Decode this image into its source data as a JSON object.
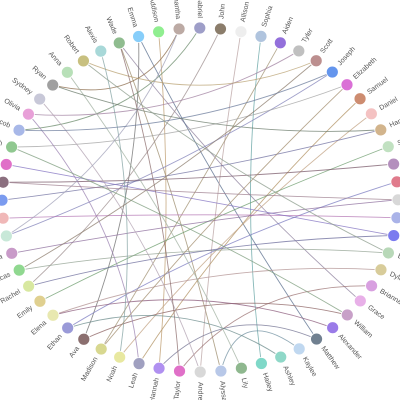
{
  "diagram": {
    "type": "radial-network",
    "nodes": [
      {
        "name": "Wade",
        "color": "#8fbc8f"
      },
      {
        "name": "Emma",
        "color": "#87cefa"
      },
      {
        "name": "Addison",
        "color": "#90ee90"
      },
      {
        "name": "Samantha",
        "color": "#bcaaa4"
      },
      {
        "name": "Gabriel",
        "color": "#9e9ec8"
      },
      {
        "name": "John",
        "color": "#8b7d6b"
      },
      {
        "name": "Allison",
        "color": "#eeeeee"
      },
      {
        "name": "Sophia",
        "color": "#b0c4de"
      },
      {
        "name": "Aiden",
        "color": "#9370db"
      },
      {
        "name": "Tyler",
        "color": "#c0c0c0"
      },
      {
        "name": "Scott",
        "color": "#bc8f8f"
      },
      {
        "name": "Joseph",
        "color": "#6495ed"
      },
      {
        "name": "Elizabeth",
        "color": "#da70d6"
      },
      {
        "name": "Samuel",
        "color": "#cd8c70"
      },
      {
        "name": "Daniel",
        "color": "#f4c2c2"
      },
      {
        "name": "Hannah",
        "color": "#d2b48c"
      },
      {
        "name": "Sofia",
        "color": "#c1e1c1"
      },
      {
        "name": "Zoey",
        "color": "#b48fbd"
      },
      {
        "name": "Olivia",
        "color": "#e07b8c"
      },
      {
        "name": "Brooklyn",
        "color": "#d8d8d8"
      },
      {
        "name": "Julia",
        "color": "#aab3e8"
      },
      {
        "name": "Joshua",
        "color": "#7b7bef"
      },
      {
        "name": "Ella",
        "color": "#b8d8b8"
      },
      {
        "name": "Dylan",
        "color": "#d8cc9a"
      },
      {
        "name": "Brianna",
        "color": "#d8a0e0"
      },
      {
        "name": "Grace",
        "color": "#e8b0e8"
      },
      {
        "name": "William",
        "color": "#c8a0c8"
      },
      {
        "name": "Alexander",
        "color": "#9a7be8"
      },
      {
        "name": "Matthew",
        "color": "#708090"
      },
      {
        "name": "Kaylee",
        "color": "#c0d8f0"
      },
      {
        "name": "Ashley",
        "color": "#8fd8c8"
      },
      {
        "name": "Hailey",
        "color": "#7fd8c8"
      },
      {
        "name": "Lily",
        "color": "#8fb88f"
      },
      {
        "name": "Alyssa",
        "color": "#b8c8e8"
      },
      {
        "name": "Andrew",
        "color": "#d8d8d8"
      },
      {
        "name": "Taylor",
        "color": "#e070c8"
      },
      {
        "name": "Hannah",
        "color": "#b090f0"
      },
      {
        "name": "Leah",
        "color": "#a0a0c0"
      },
      {
        "name": "Noah",
        "color": "#e8e8a0"
      },
      {
        "name": "Madison",
        "color": "#d8d890"
      },
      {
        "name": "Ava",
        "color": "#8b6f6f"
      },
      {
        "name": "Ethan",
        "color": "#9a9ad8"
      },
      {
        "name": "Elena",
        "color": "#e8e8b0"
      },
      {
        "name": "Emily",
        "color": "#e0d090"
      },
      {
        "name": "Rachel",
        "color": "#d8e8a0"
      },
      {
        "name": "Lucas",
        "color": "#90d890"
      },
      {
        "name": "Mia",
        "color": "#c89ac8"
      },
      {
        "name": "Liam",
        "color": "#c8e8d8"
      },
      {
        "name": "Mason",
        "color": "#f0b8b8"
      },
      {
        "name": "Isabella",
        "color": "#7b9bef"
      },
      {
        "name": "Chloe",
        "color": "#8b6f7f"
      },
      {
        "name": "Sophie",
        "color": "#e070c8"
      },
      {
        "name": "Sarah",
        "color": "#90c890"
      },
      {
        "name": "Jacob",
        "color": "#a8b8e8"
      },
      {
        "name": "Olivia",
        "color": "#e8a0d8"
      },
      {
        "name": "Sydney",
        "color": "#c8c8d8"
      },
      {
        "name": "Ryan",
        "color": "#a0a0a0"
      },
      {
        "name": "Anna",
        "color": "#b8e0b8"
      },
      {
        "name": "Robert",
        "color": "#c8c080"
      },
      {
        "name": "Alexis",
        "color": "#a8d8d8"
      }
    ],
    "edges": [
      {
        "source": 0,
        "target": 25,
        "color": "#8b7d9b"
      },
      {
        "source": 0,
        "target": 33,
        "color": "#9b8b6b"
      },
      {
        "source": 1,
        "target": 28,
        "color": "#556b8b"
      },
      {
        "source": 1,
        "target": 40,
        "color": "#6b6b6b"
      },
      {
        "source": 2,
        "target": 36,
        "color": "#bc9a6b"
      },
      {
        "source": 3,
        "target": 56,
        "color": "#8b6b4b"
      },
      {
        "source": 4,
        "target": 53,
        "color": "#6b8b6b"
      },
      {
        "source": 5,
        "target": 44,
        "color": "#9b8b8b"
      },
      {
        "source": 6,
        "target": 34,
        "color": "#b8a0a0"
      },
      {
        "source": 7,
        "target": 31,
        "color": "#5fa0a0"
      },
      {
        "source": 8,
        "target": 39,
        "color": "#a09070"
      },
      {
        "source": 9,
        "target": 54,
        "color": "#a080a0"
      },
      {
        "source": 10,
        "target": 58,
        "color": "#b8a070"
      },
      {
        "source": 11,
        "target": 47,
        "color": "#8080b8"
      },
      {
        "source": 12,
        "target": 52,
        "color": "#a0a0a0"
      },
      {
        "source": 13,
        "target": 37,
        "color": "#b09060"
      },
      {
        "source": 14,
        "target": 38,
        "color": "#c0a080"
      },
      {
        "source": 15,
        "target": 49,
        "color": "#7070a0"
      },
      {
        "source": 16,
        "target": 43,
        "color": "#6b9b6b"
      },
      {
        "source": 17,
        "target": 50,
        "color": "#7b5b6b"
      },
      {
        "source": 18,
        "target": 41,
        "color": "#7b7bc0"
      },
      {
        "source": 19,
        "target": 46,
        "color": "#8b6b9b"
      },
      {
        "source": 20,
        "target": 48,
        "color": "#b070b0"
      },
      {
        "source": 21,
        "target": 51,
        "color": "#8070c0"
      },
      {
        "source": 22,
        "target": 45,
        "color": "#90a090"
      },
      {
        "source": 23,
        "target": 42,
        "color": "#b09090"
      },
      {
        "source": 24,
        "target": 35,
        "color": "#9a7070"
      },
      {
        "source": 26,
        "target": 40,
        "color": "#8b6060"
      },
      {
        "source": 27,
        "target": 42,
        "color": "#8b5b7b"
      },
      {
        "source": 28,
        "target": 36,
        "color": "#707090"
      },
      {
        "source": 29,
        "target": 33,
        "color": "#7090a0"
      },
      {
        "source": 30,
        "target": 41,
        "color": "#6b8b8b"
      },
      {
        "source": 32,
        "target": 57,
        "color": "#a0b0a0"
      },
      {
        "source": 34,
        "target": 55,
        "color": "#b0a0b0"
      },
      {
        "source": 35,
        "target": 0,
        "color": "#8b6b6b"
      },
      {
        "source": 37,
        "target": 54,
        "color": "#9a80b0"
      },
      {
        "source": 38,
        "target": 59,
        "color": "#80a0a0"
      },
      {
        "source": 39,
        "target": 12,
        "color": "#a08b6b"
      },
      {
        "source": 44,
        "target": 21,
        "color": "#6b6b9b"
      },
      {
        "source": 45,
        "target": 10,
        "color": "#8b7b6b"
      },
      {
        "source": 47,
        "target": 3,
        "color": "#a0a0b8"
      },
      {
        "source": 50,
        "target": 19,
        "color": "#9b7b8b"
      },
      {
        "source": 52,
        "target": 26,
        "color": "#7b9b7b"
      },
      {
        "source": 53,
        "target": 11,
        "color": "#6b7b9b"
      },
      {
        "source": 56,
        "target": 15,
        "color": "#6b7b6b"
      },
      {
        "source": 58,
        "target": 22,
        "color": "#8b9b8b"
      }
    ]
  }
}
